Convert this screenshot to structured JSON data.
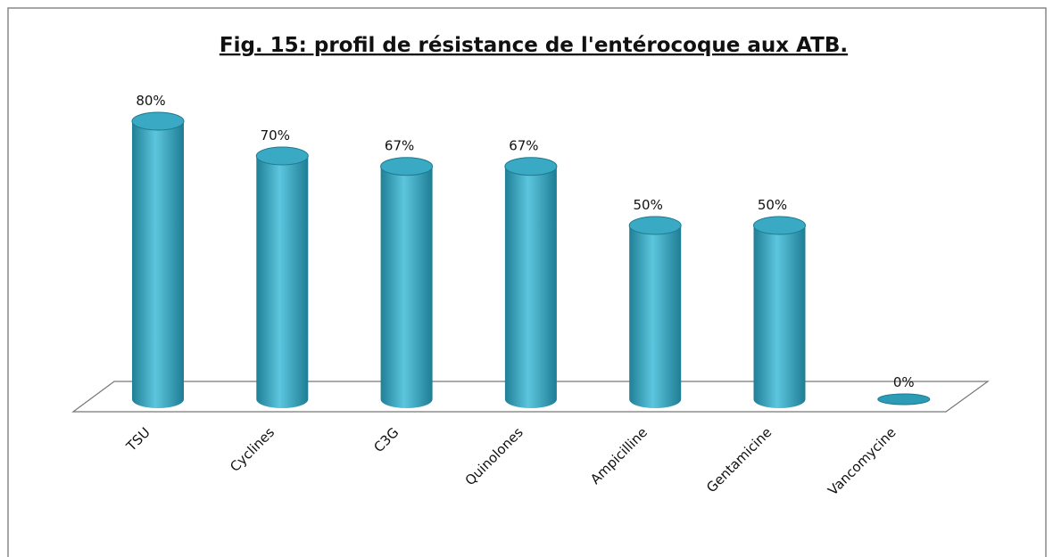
{
  "chart_data": {
    "type": "bar3d",
    "title": "Fig. 15: profil de résistance de l'entérocoque aux ATB.",
    "categories": [
      "TSU",
      "Cyclines",
      "C3G",
      "Quinolones",
      "Ampicilline",
      "Gentamicine",
      "Vancomycine"
    ],
    "values": [
      80,
      70,
      67,
      67,
      50,
      50,
      0
    ],
    "value_labels": [
      "80%",
      "70%",
      "67%",
      "67%",
      "50%",
      "50%",
      "0%"
    ],
    "color": "#2b9bb6"
  }
}
